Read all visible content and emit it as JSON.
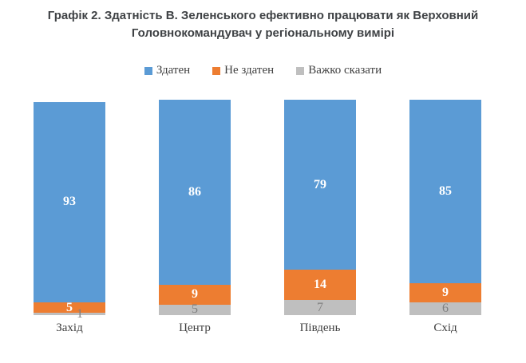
{
  "title": {
    "line1": "Графік 2. Здатність В. Зеленського ефективно працювати як Верховний",
    "line2": "Головнокомандувач у регіональному вимірі"
  },
  "colors": {
    "able": "#5B9BD5",
    "not_able": "#ED7D31",
    "hard_to_say": "#BFBFBF",
    "title_text": "#3F4245",
    "axis_text": "#3F3F3F",
    "gray_label_text": "#7F7F7F",
    "white_label_text": "#FFFFFF"
  },
  "legend": [
    {
      "label": "Здатен",
      "color": "#5B9BD5"
    },
    {
      "label": "Не здатен",
      "color": "#ED7D31"
    },
    {
      "label": "Важко сказати",
      "color": "#BFBFBF"
    }
  ],
  "chart_data": {
    "type": "bar",
    "stacked": true,
    "orientation": "vertical",
    "title": "Графік 2. Здатність В. Зеленського ефективно працювати як Верховний Головнокомандувач у регіональному вимірі",
    "categories": [
      "Захід",
      "Центр",
      "Південь",
      "Схід"
    ],
    "series": [
      {
        "name": "Здатен",
        "color": "#5B9BD5",
        "label_color": "#FFFFFF",
        "values": [
          93,
          86,
          79,
          85
        ]
      },
      {
        "name": "Не здатен",
        "color": "#ED7D31",
        "label_color": "#FFFFFF",
        "values": [
          5,
          9,
          14,
          9
        ]
      },
      {
        "name": "Важко сказати",
        "color": "#BFBFBF",
        "label_color": "#7F7F7F",
        "values": [
          1,
          5,
          7,
          6
        ]
      }
    ],
    "stack_order": "top-to-bottom-as-listed",
    "value_unit": "percent",
    "ylim": [
      0,
      100
    ],
    "grid": false,
    "axes_visible": false,
    "data_labels": true,
    "legend_position": "top"
  }
}
